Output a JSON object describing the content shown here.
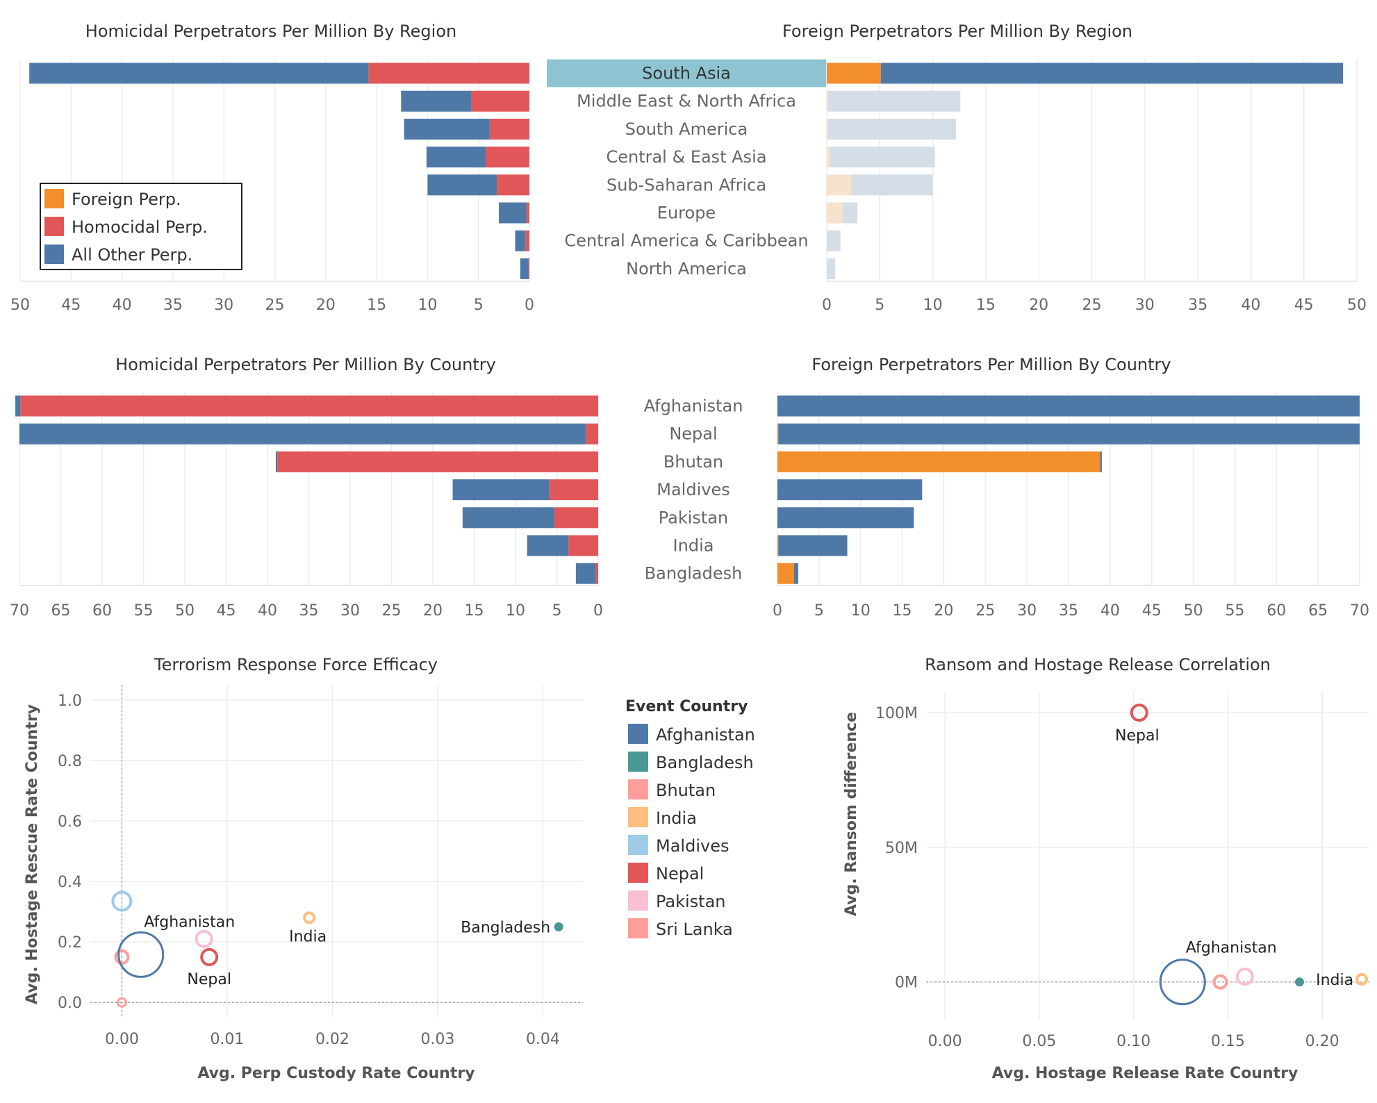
{
  "colors": {
    "foreign": "#F28E2B",
    "homicidal": "#E15759",
    "other": "#4E79A7",
    "other_faded": "#D5DEE7",
    "foreign_faded": "#F6E2CD",
    "highlight": "#8EC4D2",
    "grid": "#EDEDED"
  },
  "chart_data": [
    {
      "type": "bar",
      "title": "Homicidal Perpetrators Per Million By Region",
      "orientation": "horizontal-reversed",
      "categories": [
        "South Asia",
        "Middle East & North Africa",
        "South America",
        "Central & East Asia",
        "Sub-Saharan Africa",
        "Europe",
        "Central America & Caribbean",
        "North America"
      ],
      "series": [
        {
          "name": "Homocidal Perp.",
          "values": [
            15.8,
            5.7,
            3.9,
            4.3,
            3.2,
            0.3,
            0.4,
            0.1
          ]
        },
        {
          "name": "All Other Perp.",
          "values": [
            33.3,
            6.9,
            8.4,
            5.8,
            6.8,
            2.7,
            1.0,
            0.8
          ]
        }
      ],
      "xlim": [
        0,
        50
      ],
      "ticks": [
        50,
        45,
        40,
        35,
        30,
        25,
        20,
        15,
        10,
        5,
        0
      ]
    },
    {
      "type": "bar",
      "title": "Foreign Perpetrators Per Million By Region",
      "orientation": "horizontal",
      "categories": [
        "South Asia",
        "Middle East & North Africa",
        "South America",
        "Central & East Asia",
        "Sub-Saharan Africa",
        "Europe",
        "Central America & Caribbean",
        "North America"
      ],
      "selected": "South Asia",
      "series": [
        {
          "name": "Foreign Perp.",
          "values": [
            5.1,
            0.1,
            0.1,
            0.3,
            2.3,
            1.5,
            0.0,
            0.0
          ]
        },
        {
          "name": "All Other Perp.",
          "values": [
            43.6,
            12.5,
            12.1,
            9.9,
            7.7,
            1.4,
            1.3,
            0.8
          ]
        }
      ],
      "xlim": [
        0,
        50
      ],
      "ticks": [
        0,
        5,
        10,
        15,
        20,
        25,
        30,
        35,
        40,
        45,
        50
      ]
    },
    {
      "type": "bar",
      "title": "Homicidal Perpetrators Per Million By Country",
      "orientation": "horizontal-reversed",
      "categories": [
        "Afghanistan",
        "Nepal",
        "Bhutan",
        "Maldives",
        "Pakistan",
        "India",
        "Bangladesh"
      ],
      "series": [
        {
          "name": "Homocidal Perp.",
          "values": [
            69.9,
            1.5,
            38.8,
            5.9,
            5.3,
            3.6,
            0.3
          ]
        },
        {
          "name": "All Other Perp.",
          "values": [
            0.6,
            68.5,
            0.2,
            11.7,
            11.1,
            5.0,
            2.4
          ]
        }
      ],
      "xlim": [
        0,
        70
      ],
      "ticks": [
        70,
        65,
        60,
        55,
        50,
        45,
        40,
        35,
        30,
        25,
        20,
        15,
        10,
        5,
        0
      ]
    },
    {
      "type": "bar",
      "title": "Foreign Perpetrators Per Million By Country",
      "orientation": "horizontal",
      "categories": [
        "Afghanistan",
        "Nepal",
        "Bhutan",
        "Maldives",
        "Pakistan",
        "India",
        "Bangladesh"
      ],
      "series": [
        {
          "name": "Foreign Perp.",
          "values": [
            0.0,
            0.1,
            38.8,
            0.0,
            0.0,
            0.1,
            2.0
          ]
        },
        {
          "name": "All Other Perp.",
          "values": [
            70.0,
            69.9,
            0.2,
            17.4,
            16.4,
            8.3,
            0.5
          ]
        }
      ],
      "xlim": [
        0,
        70
      ],
      "ticks": [
        0,
        5,
        10,
        15,
        20,
        25,
        30,
        35,
        40,
        45,
        50,
        55,
        60,
        65,
        70
      ]
    },
    {
      "type": "scatter",
      "title": "Terrorism Response Force Efficacy",
      "xlabel": "Avg. Perp Custody Rate Country",
      "ylabel": "Avg. Hostage Rescue Rate Country",
      "xlim": [
        -0.003,
        0.0438
      ],
      "ylim": [
        -0.05,
        1.05
      ],
      "xticks": [
        "0.00",
        "0.01",
        "0.02",
        "0.03",
        "0.04"
      ],
      "yticks": [
        "0.0",
        "0.2",
        "0.4",
        "0.6",
        "0.8",
        "1.0"
      ],
      "points": [
        {
          "country": "Maldives",
          "x": 0.0,
          "y": 0.335,
          "size": 11,
          "label": ""
        },
        {
          "country": "Bhutan",
          "x": 0.0,
          "y": 0.15,
          "size": 7,
          "label": ""
        },
        {
          "country": "Sri Lanka",
          "x": 0.0,
          "y": 0.0,
          "size": 4,
          "label": ""
        },
        {
          "country": "Afghanistan",
          "x": 0.0018,
          "y": 0.158,
          "size": 30,
          "label": "Afghanistan"
        },
        {
          "country": "Pakistan",
          "x": 0.0078,
          "y": 0.21,
          "size": 9,
          "label": ""
        },
        {
          "country": "Nepal",
          "x": 0.0083,
          "y": 0.15,
          "size": 9,
          "label": "Nepal"
        },
        {
          "country": "India",
          "x": 0.0178,
          "y": 0.28,
          "size": 5,
          "label": "India"
        },
        {
          "country": "Bangladesh",
          "x": 0.0415,
          "y": 0.25,
          "size": 3,
          "label": "Bangladesh"
        }
      ]
    },
    {
      "type": "scatter",
      "title": "Ransom and Hostage Release Correlation",
      "xlabel": "Avg. Hostage Release Rate Country",
      "ylabel": "Avg. Ransom difference",
      "xlim": [
        -0.01,
        0.225
      ],
      "ylim": [
        -14,
        108
      ],
      "xticks": [
        "0.00",
        "0.05",
        "0.10",
        "0.15",
        "0.20"
      ],
      "yticks": [
        "0M",
        "50M",
        "100M"
      ],
      "points": [
        {
          "country": "Nepal",
          "x": 0.103,
          "y": 100,
          "size": 9,
          "label": "Nepal"
        },
        {
          "country": "Afghanistan",
          "x": 0.126,
          "y": 0,
          "size": 30,
          "label": "Afghanistan"
        },
        {
          "country": "Bhutan",
          "x": 0.146,
          "y": 0,
          "size": 7,
          "label": ""
        },
        {
          "country": "Pakistan",
          "x": 0.159,
          "y": 2,
          "size": 9,
          "label": ""
        },
        {
          "country": "Bangladesh",
          "x": 0.188,
          "y": 0,
          "size": 3,
          "label": ""
        },
        {
          "country": "India",
          "x": 0.221,
          "y": 1,
          "size": 5,
          "label": "India"
        }
      ]
    }
  ],
  "legend_perp": {
    "items": [
      {
        "label": "Foreign Perp.",
        "color": "#F28E2B"
      },
      {
        "label": "Homocidal Perp.",
        "color": "#E15759"
      },
      {
        "label": "All Other Perp.",
        "color": "#4E79A7"
      }
    ]
  },
  "legend_country": {
    "title": "Event Country",
    "items": [
      {
        "label": "Afghanistan",
        "color": "#4E79A7"
      },
      {
        "label": "Bangladesh",
        "color": "#499894"
      },
      {
        "label": "Bhutan",
        "color": "#FF9D9A"
      },
      {
        "label": "India",
        "color": "#FFBE7D"
      },
      {
        "label": "Maldives",
        "color": "#A0CBE8"
      },
      {
        "label": "Nepal",
        "color": "#E15759"
      },
      {
        "label": "Pakistan",
        "color": "#FABFD2"
      },
      {
        "label": "Sri Lanka",
        "color": "#FF9D9A"
      }
    ]
  }
}
